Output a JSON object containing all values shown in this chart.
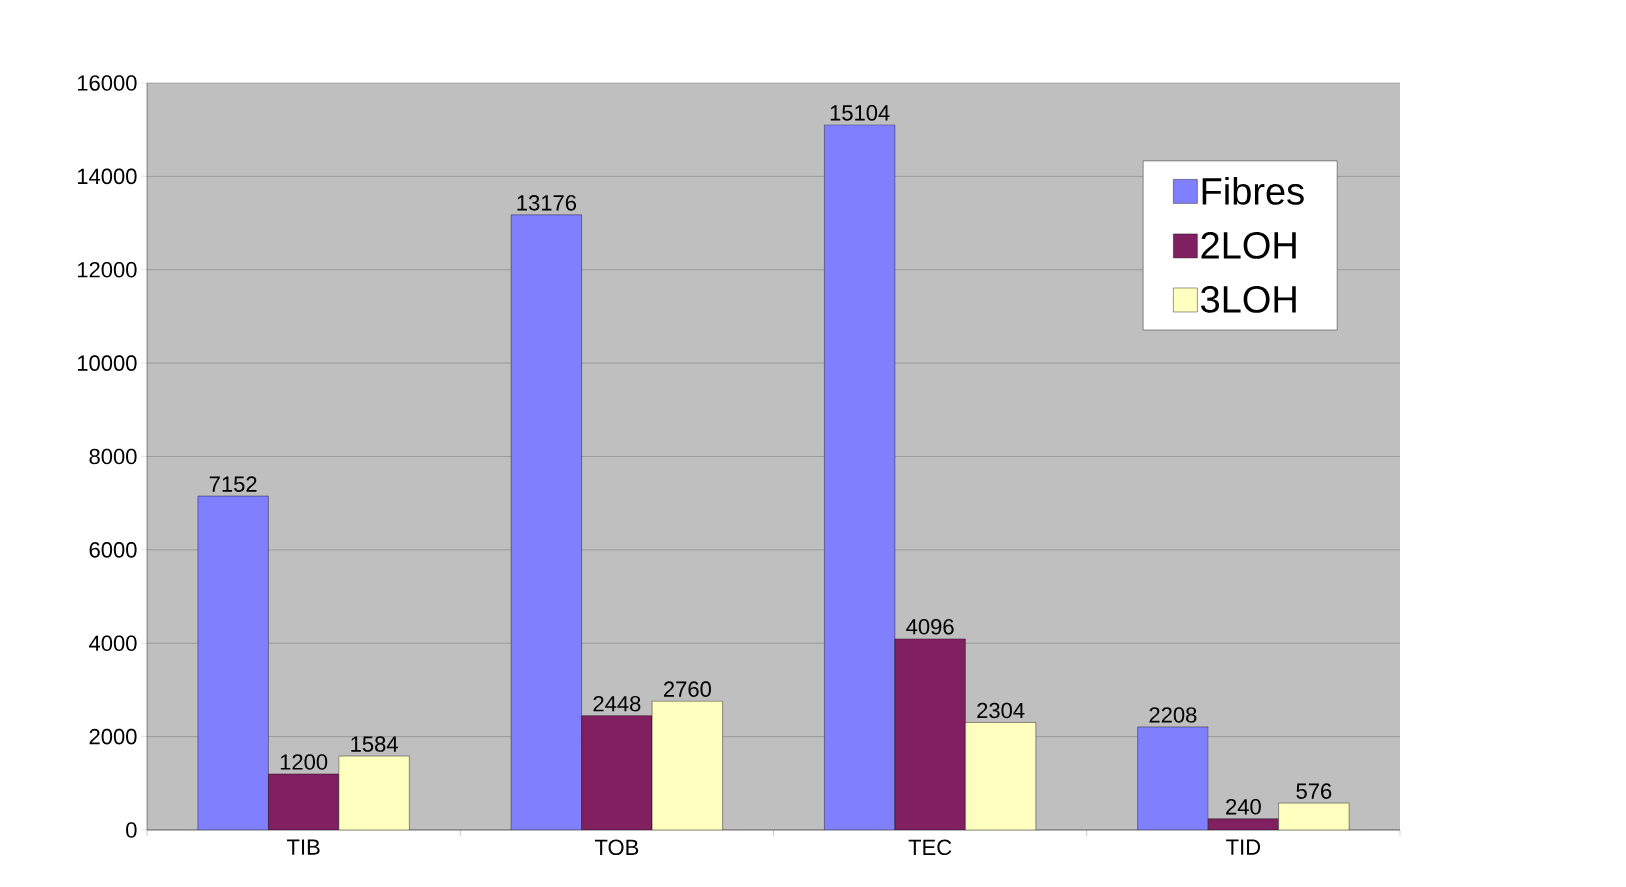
{
  "chart_data": {
    "type": "bar",
    "categories": [
      "TIB",
      "TOB",
      "TEC",
      "TID"
    ],
    "series": [
      {
        "name": "Fibres",
        "color": "#8080ff",
        "values": [
          7152,
          13176,
          15104,
          2208
        ]
      },
      {
        "name": "2LOH",
        "color": "#802060",
        "values": [
          1200,
          2448,
          4096,
          240
        ]
      },
      {
        "name": "3LOH",
        "color": "#ffffc0",
        "values": [
          1584,
          2760,
          2304,
          576
        ]
      }
    ],
    "ylim": [
      0,
      16000
    ],
    "yticks": [
      0,
      2000,
      4000,
      6000,
      8000,
      10000,
      12000,
      14000,
      16000
    ],
    "grid": "y",
    "legend": "top right",
    "data_labels": true
  }
}
